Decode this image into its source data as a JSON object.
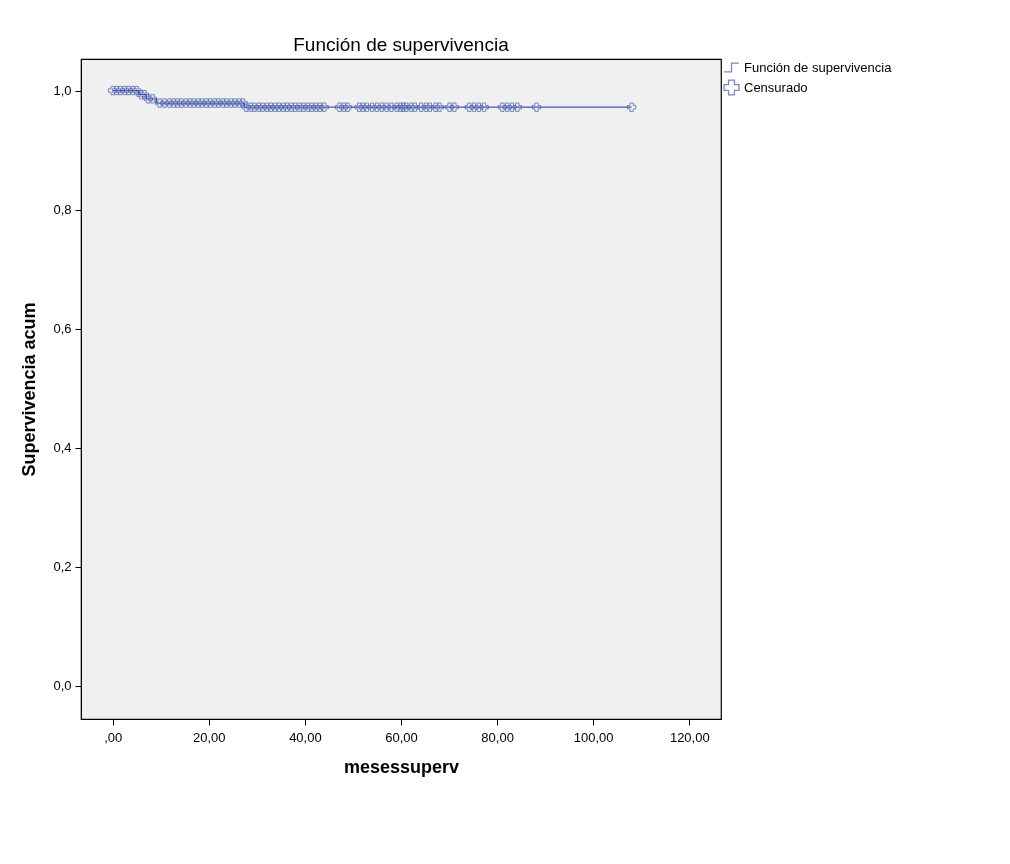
{
  "chart_data": {
    "type": "step",
    "title": "Función de supervivencia",
    "xlabel": "mesessuperv",
    "ylabel": "Supervivencia acum",
    "xlim": [
      -6.6,
      126.6
    ],
    "ylim": [
      -0.056,
      1.053
    ],
    "xticks": [
      {
        "value": 0,
        "label": ",00"
      },
      {
        "value": 20,
        "label": "20,00"
      },
      {
        "value": 40,
        "label": "40,00"
      },
      {
        "value": 60,
        "label": "60,00"
      },
      {
        "value": 80,
        "label": "80,00"
      },
      {
        "value": 100,
        "label": "100,00"
      },
      {
        "value": 120,
        "label": "120,00"
      }
    ],
    "yticks": [
      {
        "value": 0,
        "label": "0,0"
      },
      {
        "value": 0.2,
        "label": "0,2"
      },
      {
        "value": 0.4,
        "label": "0,4"
      },
      {
        "value": 0.6,
        "label": "0,6"
      },
      {
        "value": 0.8,
        "label": "0,8"
      },
      {
        "value": 1,
        "label": "1,0"
      }
    ],
    "grid": false,
    "legend": "right",
    "series": [
      {
        "name": "Función de supervivencia",
        "color": "#3f57a8",
        "x": [
          0,
          5.4,
          7.0,
          9.1,
          27.4,
          108
        ],
        "values": [
          1,
          0.993,
          0.986,
          0.979,
          0.972,
          0.972
        ]
      },
      {
        "name": "Censurado",
        "type": "scatter",
        "marker": "cross",
        "color": "#3f57a8",
        "x": [
          0,
          0.8,
          1.6,
          2.5,
          3.3,
          4.2,
          5.0,
          5.9,
          6.6,
          7.4,
          8.3,
          9.8,
          10.8,
          11.8,
          12.7,
          13.5,
          14.3,
          15.2,
          16.1,
          16.9,
          17.8,
          18.6,
          19.5,
          20.3,
          21.2,
          22.0,
          22.9,
          23.7,
          24.6,
          25.4,
          26.3,
          27.1,
          27.8,
          28.7,
          29.5,
          30.4,
          31.2,
          32.1,
          32.9,
          33.8,
          34.6,
          35.5,
          36.3,
          37.2,
          38.0,
          38.9,
          39.7,
          40.6,
          41.4,
          42.3,
          43.1,
          44.0,
          47.2,
          48.1,
          48.9,
          51.3,
          52.1,
          52.9,
          54.0,
          55.0,
          56.0,
          57.0,
          58.0,
          59.1,
          59.9,
          60.5,
          61.1,
          62.1,
          62.9,
          64.2,
          65.2,
          66.0,
          67.2,
          68.0,
          70.1,
          71.1,
          74.2,
          75.2,
          76.2,
          77.3,
          81.1,
          82.1,
          83.1,
          84.2,
          88.2,
          108.0
        ],
        "values": [
          1,
          1,
          1,
          1,
          1,
          1,
          1,
          0.993,
          0.993,
          0.986,
          0.986,
          0.979,
          0.979,
          0.979,
          0.979,
          0.979,
          0.979,
          0.979,
          0.979,
          0.979,
          0.979,
          0.979,
          0.979,
          0.979,
          0.979,
          0.979,
          0.979,
          0.979,
          0.979,
          0.979,
          0.979,
          0.979,
          0.972,
          0.972,
          0.972,
          0.972,
          0.972,
          0.972,
          0.972,
          0.972,
          0.972,
          0.972,
          0.972,
          0.972,
          0.972,
          0.972,
          0.972,
          0.972,
          0.972,
          0.972,
          0.972,
          0.972,
          0.972,
          0.972,
          0.972,
          0.972,
          0.972,
          0.972,
          0.972,
          0.972,
          0.972,
          0.972,
          0.972,
          0.972,
          0.972,
          0.972,
          0.972,
          0.972,
          0.972,
          0.972,
          0.972,
          0.972,
          0.972,
          0.972,
          0.972,
          0.972,
          0.972,
          0.972,
          0.972,
          0.972,
          0.972,
          0.972,
          0.972,
          0.972,
          0.972,
          0.972
        ]
      }
    ]
  }
}
